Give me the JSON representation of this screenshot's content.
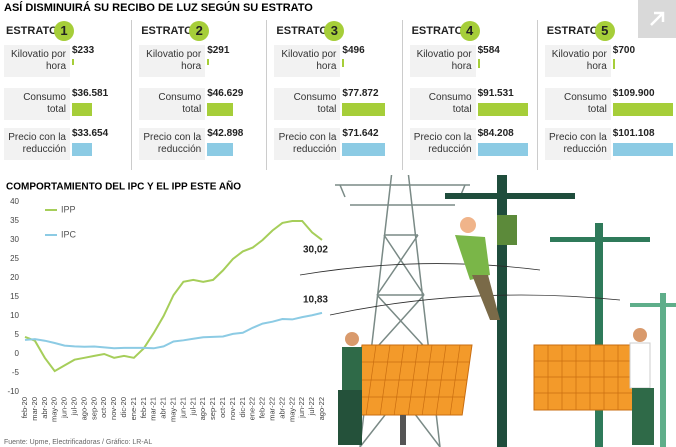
{
  "header": {
    "title": "ASÍ DISMINUIRÁ SU RECIBO DE LUZ SEGÚN SU ESTRATO"
  },
  "estratos": {
    "label": "ESTRATO",
    "rows": [
      "Kilovatio por hora",
      "Consumo total",
      "Precio con la reducción"
    ],
    "items": [
      {
        "number": 1,
        "values": [
          233,
          36581,
          33654
        ],
        "value_labels": [
          "$233",
          "$36.581",
          "$33.654"
        ]
      },
      {
        "number": 2,
        "values": [
          291,
          46629,
          42898
        ],
        "value_labels": [
          "$291",
          "$46.629",
          "$42.898"
        ]
      },
      {
        "number": 3,
        "values": [
          496,
          77872,
          71642
        ],
        "value_labels": [
          "$496",
          "$77.872",
          "$71.642"
        ]
      },
      {
        "number": 4,
        "values": [
          584,
          91531,
          84208
        ],
        "value_labels": [
          "$584",
          "$91.531",
          "$84.208"
        ]
      },
      {
        "number": 5,
        "values": [
          700,
          109900,
          101108
        ],
        "value_labels": [
          "$700",
          "$109.900",
          "$101.108"
        ]
      }
    ],
    "colors": [
      "#a6ce39",
      "#a6ce39",
      "#8ccbe4"
    ]
  },
  "chart_data": {
    "type": "line",
    "title": "COMPORTAMIENTO DEL IPC Y EL IPP ESTE AÑO",
    "categories": [
      "feb-20",
      "mar-20",
      "abr-20",
      "may-20",
      "jun-20",
      "jul-20",
      "ago-20",
      "sep-20",
      "oct-20",
      "nov-20",
      "dic-20",
      "ene-21",
      "feb-21",
      "mar-21",
      "abr-21",
      "may-21",
      "jun-21",
      "jul-21",
      "ago-21",
      "sep-21",
      "oct-21",
      "nov-21",
      "dic-21",
      "ene-22",
      "feb-22",
      "mar-22",
      "abr-22",
      "may-22",
      "jun-22",
      "jul-22",
      "ago-22"
    ],
    "series": [
      {
        "name": "IPP",
        "color": "#a6ce5a",
        "values": [
          4.5,
          3.5,
          -1,
          -4.5,
          -3,
          -1.5,
          -1,
          -0.5,
          0,
          -1,
          -0.5,
          -1,
          1.5,
          5.5,
          10,
          15.5,
          19,
          19.5,
          19,
          19.5,
          22,
          25,
          27,
          28,
          30,
          32.5,
          34.5,
          35,
          35,
          32,
          30.02
        ],
        "value_labels": [
          null,
          null,
          null,
          null,
          null,
          null,
          null,
          null,
          null,
          null,
          null,
          null,
          null,
          null,
          null,
          null,
          null,
          null,
          null,
          null,
          null,
          null,
          null,
          null,
          null,
          null,
          null,
          null,
          null,
          null,
          "30,02"
        ]
      },
      {
        "name": "IPC",
        "color": "#8ccbe4",
        "values": [
          3.7,
          3.9,
          3.5,
          2.9,
          2.2,
          2.0,
          1.9,
          1.97,
          1.75,
          1.5,
          1.6,
          1.6,
          1.6,
          1.5,
          2.0,
          3.3,
          3.6,
          4.0,
          4.4,
          4.5,
          4.6,
          5.3,
          5.6,
          6.9,
          8.0,
          8.5,
          9.2,
          9.1,
          9.7,
          10.2,
          10.83
        ],
        "value_labels": [
          null,
          null,
          null,
          null,
          null,
          null,
          null,
          null,
          null,
          null,
          null,
          null,
          null,
          null,
          null,
          null,
          null,
          null,
          null,
          null,
          null,
          null,
          null,
          null,
          null,
          null,
          null,
          null,
          null,
          null,
          "10,83"
        ]
      }
    ],
    "ylim": [
      -10,
      40
    ],
    "yticks": [
      -10,
      -5,
      0,
      5,
      10,
      15,
      20,
      25,
      30,
      35,
      40
    ],
    "grid": false,
    "source": "Fuente: Upme, Electrificadoras / Gráfico: LR-AL"
  }
}
